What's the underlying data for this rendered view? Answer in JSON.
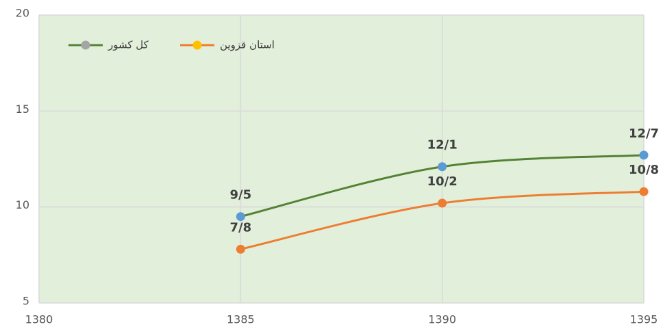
{
  "chart_data": {
    "type": "line",
    "x": [
      1385,
      1390,
      1395
    ],
    "series": [
      {
        "name": "کل کشور",
        "color": "#548235",
        "marker_color": "#5b9bd5",
        "legend_marker_color": "#a5a5a5",
        "values": [
          9.5,
          12.1,
          12.7
        ],
        "value_labels": [
          "9/5",
          "12/1",
          "12/7"
        ]
      },
      {
        "name": "استان قزوین",
        "color": "#ed7d31",
        "marker_color": "#ed7d31",
        "legend_marker_color": "#ffc000",
        "values": [
          7.8,
          10.2,
          10.8
        ],
        "value_labels": [
          "7/8",
          "10/2",
          "10/8"
        ]
      }
    ],
    "xlim": [
      1380,
      1395
    ],
    "xticks": [
      1380,
      1385,
      1390,
      1395
    ],
    "ylim": [
      5,
      20
    ],
    "yticks": [
      5,
      10,
      15,
      20
    ],
    "grid": true,
    "legend": "upper left",
    "background": "#e2efda"
  }
}
